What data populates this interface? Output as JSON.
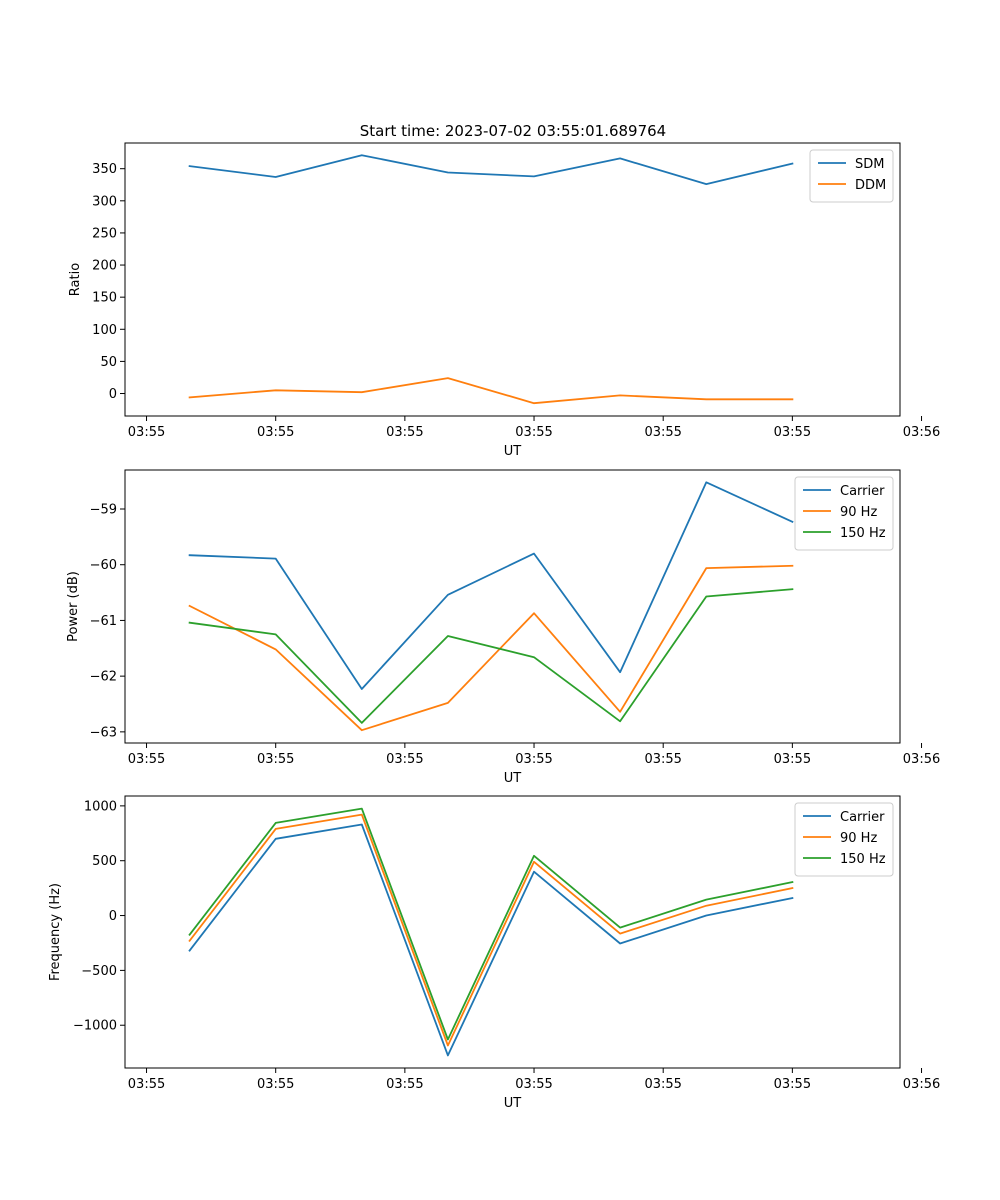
{
  "figure_title": "Start time: 2023-07-02 03:55:01.689764",
  "colors": {
    "blue": "#1f77b4",
    "orange": "#ff7f0e",
    "green": "#2ca02c"
  },
  "chart_data": [
    {
      "type": "line",
      "ylabel": "Ratio",
      "xlabel": "UT",
      "x": [
        1,
        2,
        3,
        4,
        5,
        6,
        7,
        8
      ],
      "xlim": [
        0.25,
        9.25
      ],
      "xticks": [
        0.5,
        2,
        3.5,
        5,
        6.5,
        8,
        9.5
      ],
      "xtick_labels": [
        "03:55",
        "03:55",
        "03:55",
        "03:55",
        "03:55",
        "03:55",
        "03:56"
      ],
      "ylim": [
        -35,
        390
      ],
      "yticks": [
        0,
        50,
        100,
        150,
        200,
        250,
        300,
        350
      ],
      "ytick_labels": [
        "0",
        "50",
        "100",
        "150",
        "200",
        "250",
        "300",
        "350"
      ],
      "legend_position": "top-right",
      "series": [
        {
          "name": "SDM",
          "color": "#1f77b4",
          "values": [
            354,
            337,
            371,
            344,
            338,
            366,
            326,
            358
          ]
        },
        {
          "name": "DDM",
          "color": "#ff7f0e",
          "values": [
            -6,
            5,
            2,
            24,
            -15,
            -3,
            -9,
            -9
          ]
        }
      ]
    },
    {
      "type": "line",
      "ylabel": "Power (dB)",
      "xlabel": "UT",
      "x": [
        1,
        2,
        3,
        4,
        5,
        6,
        7,
        8
      ],
      "xlim": [
        0.25,
        9.25
      ],
      "xticks": [
        0.5,
        2,
        3.5,
        5,
        6.5,
        8,
        9.5
      ],
      "xtick_labels": [
        "03:55",
        "03:55",
        "03:55",
        "03:55",
        "03:55",
        "03:55",
        "03:56"
      ],
      "ylim": [
        -63.2,
        -58.3
      ],
      "yticks": [
        -63,
        -62,
        -61,
        -60,
        -59
      ],
      "ytick_labels": [
        "−63",
        "−62",
        "−61",
        "−60",
        "−59"
      ],
      "legend_position": "top-right",
      "series": [
        {
          "name": "Carrier",
          "color": "#1f77b4",
          "values": [
            -59.83,
            -59.89,
            -62.23,
            -60.54,
            -59.8,
            -61.93,
            -58.52,
            -59.23
          ]
        },
        {
          "name": "90 Hz",
          "color": "#ff7f0e",
          "values": [
            -60.74,
            -61.52,
            -62.97,
            -62.48,
            -60.87,
            -62.64,
            -60.06,
            -60.02
          ]
        },
        {
          "name": "150 Hz",
          "color": "#2ca02c",
          "values": [
            -61.04,
            -61.25,
            -62.84,
            -61.28,
            -61.66,
            -62.81,
            -60.57,
            -60.44
          ]
        }
      ]
    },
    {
      "type": "line",
      "ylabel": "Frequency (Hz)",
      "xlabel": "UT",
      "x": [
        1,
        2,
        3,
        4,
        5,
        6,
        7,
        8
      ],
      "xlim": [
        0.25,
        9.25
      ],
      "xticks": [
        0.5,
        2,
        3.5,
        5,
        6.5,
        8,
        9.5
      ],
      "xtick_labels": [
        "03:55",
        "03:55",
        "03:55",
        "03:55",
        "03:55",
        "03:55",
        "03:56"
      ],
      "ylim": [
        -1390,
        1090
      ],
      "yticks": [
        -1000,
        -500,
        0,
        500,
        1000
      ],
      "ytick_labels": [
        "−1000",
        "−500",
        "0",
        "500",
        "1000"
      ],
      "legend_position": "top-right",
      "series": [
        {
          "name": "Carrier",
          "color": "#1f77b4",
          "values": [
            -320,
            700,
            830,
            -1275,
            400,
            -255,
            0,
            160
          ]
        },
        {
          "name": "90 Hz",
          "color": "#ff7f0e",
          "values": [
            -230,
            790,
            920,
            -1185,
            490,
            -165,
            90,
            250
          ]
        },
        {
          "name": "150 Hz",
          "color": "#2ca02c",
          "values": [
            -175,
            845,
            975,
            -1130,
            545,
            -110,
            145,
            305
          ]
        }
      ]
    }
  ]
}
